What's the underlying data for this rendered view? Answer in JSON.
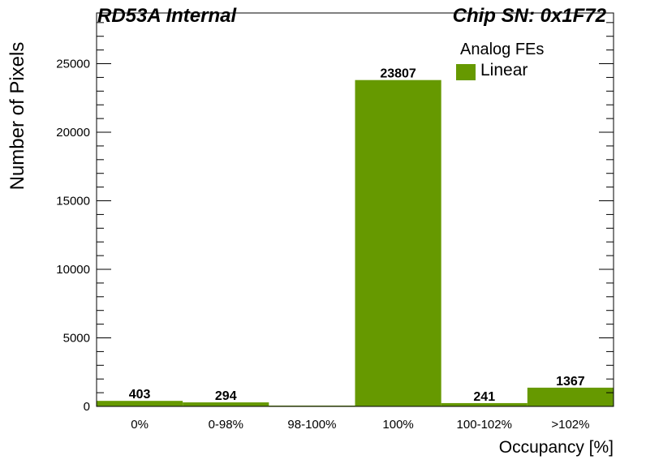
{
  "header": {
    "left_title": "RD53A Internal",
    "right_title": "Chip SN: 0x1F72"
  },
  "legend": {
    "title": "Analog FEs",
    "label": "Linear"
  },
  "chart_data": {
    "type": "bar",
    "xlabel": "Occupancy [%]",
    "ylabel": "Number of Pixels",
    "categories": [
      "0%",
      "0-98%",
      "98-100%",
      "100%",
      "100-102%",
      ">102%"
    ],
    "series": [
      {
        "name": "Linear",
        "values": [
          403,
          294,
          0,
          23807,
          241,
          1367
        ],
        "color": "#669900"
      }
    ],
    "value_labels": [
      "403",
      "294",
      "",
      "23807",
      "241",
      "1367"
    ],
    "ylim": [
      0,
      28700
    ],
    "yticks": [
      0,
      5000,
      10000,
      15000,
      20000,
      25000
    ],
    "grid": false,
    "legend_position": "top-right"
  }
}
